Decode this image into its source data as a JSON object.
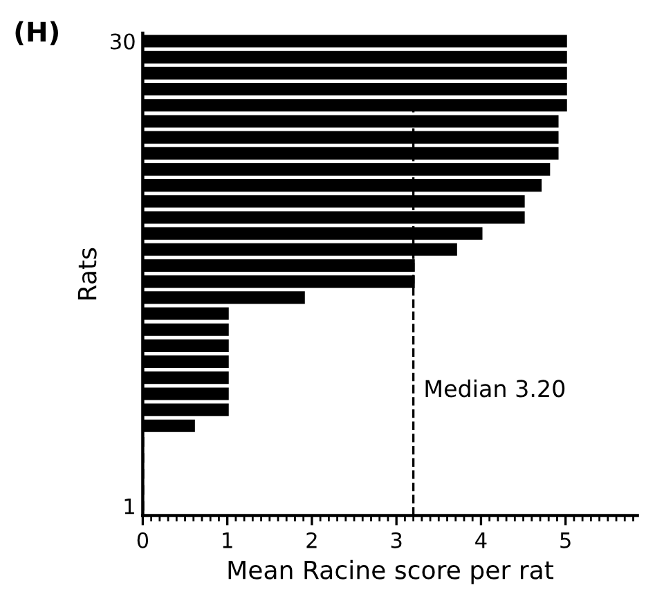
{
  "chart_data": {
    "type": "bar",
    "orientation": "horizontal",
    "title": "(H)",
    "xlabel": "Mean Racine score per rat",
    "ylabel": "Rats",
    "categories": [
      "30",
      null,
      null,
      null,
      null,
      null,
      null,
      null,
      null,
      null,
      null,
      null,
      null,
      null,
      null,
      null,
      null,
      null,
      null,
      null,
      null,
      null,
      null,
      null,
      null,
      null,
      null,
      null,
      null,
      "1"
    ],
    "values": [
      5.0,
      5.0,
      5.0,
      5.0,
      5.0,
      4.9,
      4.9,
      4.9,
      4.8,
      4.7,
      4.5,
      4.5,
      4.0,
      3.7,
      3.2,
      3.2,
      1.9,
      1.0,
      1.0,
      1.0,
      1.0,
      1.0,
      1.0,
      1.0,
      0.6,
      0,
      0,
      0,
      0,
      0
    ],
    "color": "#000000",
    "xlim": [
      0,
      5.85
    ],
    "xticks": [
      0,
      1,
      2,
      3,
      4,
      5
    ],
    "ref_lines": [
      {
        "axis": "x",
        "value": 3.2,
        "label": "Median 3.20",
        "color": "#000000",
        "line_style": "dashed"
      }
    ],
    "grid": false,
    "legend": false
  }
}
